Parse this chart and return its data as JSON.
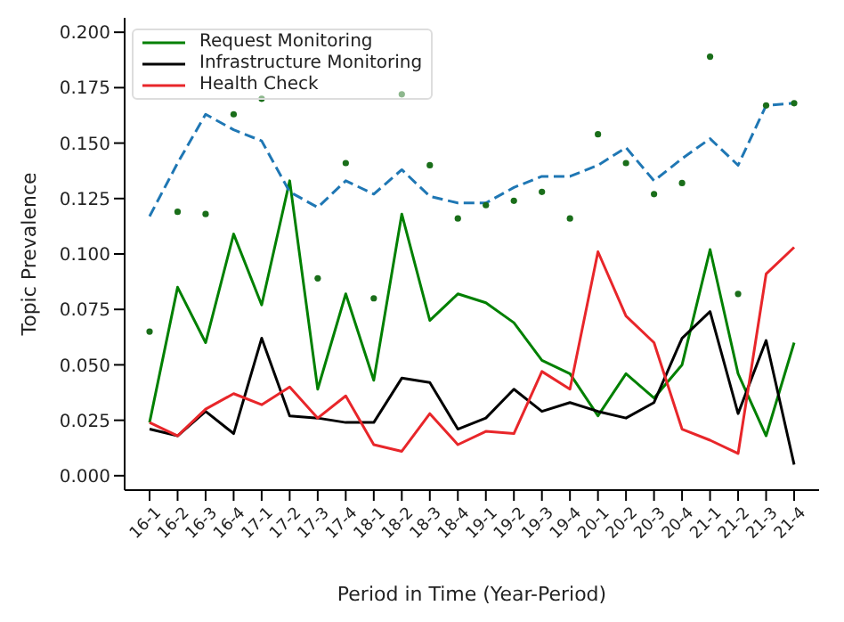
{
  "chart_data": {
    "type": "line",
    "xlabel": "Period in Time (Year-Period)",
    "ylabel": "Topic Prevalence",
    "categories": [
      "16-1",
      "16-2",
      "16-3",
      "16-4",
      "17-1",
      "17-2",
      "17-3",
      "17-4",
      "18-1",
      "18-2",
      "18-3",
      "18-4",
      "19-1",
      "19-2",
      "19-3",
      "19-4",
      "20-1",
      "20-2",
      "20-3",
      "20-4",
      "21-1",
      "21-2",
      "21-3",
      "21-4"
    ],
    "ylim": [
      -0.0065,
      0.2065
    ],
    "yticks": [
      {
        "value": 0,
        "label": "0.000"
      },
      {
        "value": 0.025,
        "label": "0.025"
      },
      {
        "value": 0.05,
        "label": "0.050"
      },
      {
        "value": 0.075,
        "label": "0.075"
      },
      {
        "value": 0.1,
        "label": "0.100"
      },
      {
        "value": 0.125,
        "label": "0.125"
      },
      {
        "value": 0.15,
        "label": "0.150"
      },
      {
        "value": 0.175,
        "label": "0.175"
      },
      {
        "value": 0.2,
        "label": "0.200"
      }
    ],
    "legend": "top left",
    "grid": false,
    "series": [
      {
        "name": "Request Monitoring",
        "color": "#008000",
        "values": [
          0.024,
          0.085,
          0.06,
          0.109,
          0.077,
          0.133,
          0.039,
          0.082,
          0.043,
          0.118,
          0.07,
          0.082,
          0.078,
          0.069,
          0.052,
          0.046,
          0.027,
          0.046,
          0.035,
          0.05,
          0.102,
          0.046,
          0.018,
          0.06
        ]
      },
      {
        "name": "Infrastructure Monitoring",
        "color": "#000000",
        "values": [
          0.021,
          0.018,
          0.029,
          0.019,
          0.062,
          0.027,
          0.026,
          0.024,
          0.024,
          0.044,
          0.042,
          0.021,
          0.026,
          0.039,
          0.029,
          0.033,
          0.029,
          0.026,
          0.033,
          0.062,
          0.074,
          0.028,
          0.061,
          0.005
        ]
      },
      {
        "name": "Health Check",
        "color": "#e8262a",
        "values": [
          0.024,
          0.018,
          0.03,
          0.037,
          0.032,
          0.04,
          0.026,
          0.036,
          0.014,
          0.011,
          0.028,
          0.014,
          0.02,
          0.019,
          0.047,
          0.039,
          0.101,
          0.072,
          0.06,
          0.021,
          0.016,
          0.01,
          0.091,
          0.103
        ]
      },
      {
        "color": "#1f77b4",
        "line_style": "dashed",
        "values": [
          0.117,
          0.141,
          0.163,
          0.156,
          0.151,
          0.128,
          0.121,
          0.133,
          0.127,
          0.138,
          0.126,
          0.123,
          0.123,
          0.13,
          0.135,
          0.135,
          0.14,
          0.148,
          0.133,
          0.143,
          0.152,
          0.14,
          0.167,
          0.168
        ]
      },
      {
        "type": "scatter",
        "marker": "circle",
        "color": "#1a6e1a",
        "values": [
          0.065,
          0.119,
          0.118,
          0.163,
          0.17,
          null,
          0.089,
          0.141,
          0.08,
          0.172,
          0.14,
          0.116,
          0.122,
          0.124,
          0.128,
          0.116,
          0.154,
          0.141,
          0.127,
          0.132,
          0.189,
          0.082,
          0.167,
          0.168
        ]
      }
    ]
  }
}
